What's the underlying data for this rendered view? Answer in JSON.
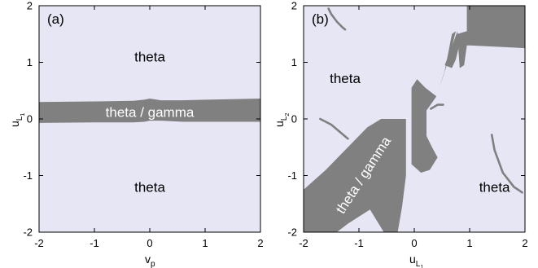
{
  "chart_data": [
    {
      "type": "heatmap",
      "panel_label": "(a)",
      "xlabel": "v",
      "xlabel_sub": "p",
      "ylabel": "u",
      "ylabel_sub": "L",
      "ylabel_subsub": "1",
      "xlim": [
        -2,
        2
      ],
      "ylim": [
        -2,
        2
      ],
      "xticks": [
        -2,
        -1,
        0,
        1,
        2
      ],
      "yticks": [
        -2,
        -1,
        0,
        1,
        2
      ],
      "grid": false,
      "regions": [
        {
          "label": "theta",
          "x": 0,
          "y": 1.1,
          "color": "#e6e6f4"
        },
        {
          "label": "theta / gamma",
          "x": 0,
          "y": 0.12,
          "color": "#808080"
        },
        {
          "label": "theta",
          "x": 0,
          "y": -1.2,
          "color": "#e6e6f4"
        }
      ],
      "gamma_band": {
        "x": [
          -2.0,
          -1.0,
          -0.3,
          -0.1,
          0.0,
          0.2,
          0.6,
          1.0,
          2.0
        ],
        "lower": [
          -0.07,
          -0.06,
          -0.06,
          -0.05,
          -0.03,
          -0.03,
          -0.05,
          -0.05,
          -0.05
        ],
        "upper": [
          0.3,
          0.31,
          0.32,
          0.34,
          0.36,
          0.33,
          0.33,
          0.34,
          0.36
        ]
      }
    },
    {
      "type": "heatmap",
      "panel_label": "(b)",
      "xlabel": "u",
      "xlabel_sub": "L",
      "xlabel_subsub": "1",
      "ylabel": "u",
      "ylabel_sub": "L",
      "ylabel_subsub": "2",
      "xlim": [
        -2,
        2
      ],
      "ylim": [
        -2,
        2
      ],
      "xticks": [
        -2,
        -1,
        0,
        1,
        2
      ],
      "yticks": [
        -2,
        -1,
        0,
        1,
        2
      ],
      "grid": false,
      "regions": [
        {
          "label": "theta",
          "x": -1.25,
          "y": 0.72,
          "color": "#e6e6f4"
        },
        {
          "label": "theta",
          "x": 1.45,
          "y": -1.2,
          "color": "#e6e6f4"
        },
        {
          "label": "theta / gamma",
          "x": -0.85,
          "y": -0.95,
          "rotation": -57,
          "color": "#808080"
        }
      ],
      "gamma_polygons": [
        [
          [
            -2.0,
            -1.25
          ],
          [
            -1.6,
            -0.9
          ],
          [
            -1.2,
            -0.5
          ],
          [
            -0.85,
            -0.15
          ],
          [
            -0.6,
            0.0
          ],
          [
            -0.15,
            0.0
          ],
          [
            -0.15,
            -1.0
          ],
          [
            -0.22,
            -1.55
          ],
          [
            -0.3,
            -2.0
          ],
          [
            -0.55,
            -2.0
          ],
          [
            -0.8,
            -1.6
          ],
          [
            -1.2,
            -1.85
          ],
          [
            -1.4,
            -2.0
          ],
          [
            -2.0,
            -2.0
          ]
        ],
        [
          [
            -0.05,
            0.0
          ],
          [
            -0.05,
            0.55
          ],
          [
            0.05,
            0.7
          ],
          [
            0.2,
            0.55
          ],
          [
            0.4,
            0.4
          ],
          [
            0.33,
            0.3
          ],
          [
            0.22,
            0.15
          ],
          [
            0.22,
            0.0
          ]
        ],
        [
          [
            -0.05,
            0.0
          ],
          [
            0.22,
            0.0
          ],
          [
            0.22,
            -0.3
          ],
          [
            0.32,
            -0.5
          ],
          [
            0.42,
            -0.68
          ],
          [
            0.28,
            -0.9
          ],
          [
            0.12,
            -0.95
          ],
          [
            -0.05,
            -0.8
          ]
        ],
        [
          [
            0.45,
            0.55
          ],
          [
            0.52,
            0.75
          ],
          [
            0.62,
            1.05
          ],
          [
            0.7,
            1.35
          ],
          [
            0.75,
            1.55
          ],
          [
            0.68,
            1.5
          ],
          [
            0.62,
            1.2
          ],
          [
            0.55,
            0.85
          ]
        ],
        [
          [
            0.55,
            0.95
          ],
          [
            0.65,
            1.2
          ],
          [
            0.78,
            1.55
          ],
          [
            0.8,
            1.25
          ],
          [
            0.75,
            1.05
          ],
          [
            0.68,
            0.9
          ]
        ],
        [
          [
            0.78,
            1.5
          ],
          [
            0.95,
            1.55
          ],
          [
            0.95,
            2.0
          ],
          [
            2.0,
            2.0
          ],
          [
            2.0,
            1.25
          ],
          [
            1.0,
            1.3
          ],
          [
            0.95,
            1.3
          ],
          [
            0.9,
            0.95
          ],
          [
            0.82,
            0.9
          ]
        ]
      ],
      "gamma_curves": [
        [
          [
            -1.55,
            1.95
          ],
          [
            -1.5,
            1.85
          ],
          [
            -1.4,
            1.72
          ],
          [
            -1.3,
            1.62
          ],
          [
            -1.25,
            1.58
          ]
        ],
        [
          [
            -1.7,
            0.0
          ],
          [
            -1.5,
            -0.1
          ],
          [
            -1.2,
            -0.35
          ]
        ],
        [
          [
            1.0,
            1.8
          ],
          [
            1.0,
            1.5
          ],
          [
            1.02,
            1.35
          ]
        ],
        [
          [
            1.95,
            -1.3
          ],
          [
            1.8,
            -1.2
          ],
          [
            1.6,
            -0.95
          ],
          [
            1.45,
            -0.55
          ],
          [
            1.4,
            -0.28
          ]
        ],
        [
          [
            0.3,
            0.18
          ],
          [
            0.42,
            0.25
          ],
          [
            0.52,
            0.25
          ]
        ]
      ]
    }
  ]
}
